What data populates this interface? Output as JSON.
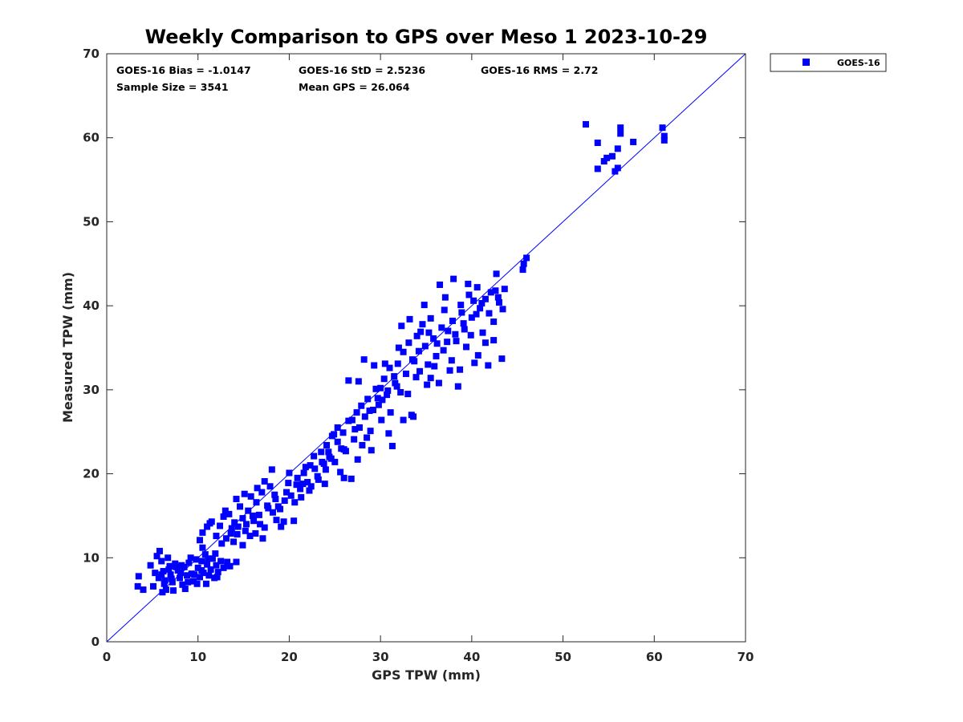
{
  "chart_data": {
    "type": "scatter",
    "title": "Weekly Comparison to GPS over Meso 1 2023-10-29",
    "xlabel": "GPS TPW (mm)",
    "ylabel": "Measured TPW (mm)",
    "xlim": [
      0,
      70
    ],
    "ylim": [
      0,
      70
    ],
    "xticks": [
      "0",
      "10",
      "20",
      "30",
      "40",
      "50",
      "60",
      "70"
    ],
    "yticks": [
      "0",
      "10",
      "20",
      "30",
      "40",
      "50",
      "60",
      "70"
    ],
    "grid": false,
    "legend_position": "outside-top-right",
    "stats": {
      "bias": "GOES-16 Bias = -1.0147",
      "std": "GOES-16 StD = 2.5236",
      "rms": "GOES-16 RMS = 2.72",
      "sample_size": "Sample Size = 3541",
      "mean_gps": "Mean GPS = 26.064"
    },
    "reference_line": {
      "name": "1:1",
      "x": [
        0,
        70
      ],
      "y": [
        0,
        70
      ],
      "color": "#0000ff"
    },
    "series": [
      {
        "name": "GOES-16",
        "color": "#0000ff",
        "marker": "square",
        "points": [
          [
            3.5,
            7.8
          ],
          [
            3.4,
            6.6
          ],
          [
            4.0,
            6.2
          ],
          [
            5.1,
            6.6
          ],
          [
            5.3,
            8.2
          ],
          [
            5.5,
            10.2
          ],
          [
            5.8,
            10.8
          ],
          [
            6.0,
            9.6
          ],
          [
            6.2,
            8.4
          ],
          [
            6.4,
            7.3
          ],
          [
            6.5,
            6.2
          ],
          [
            6.7,
            10.0
          ],
          [
            6.9,
            9.0
          ],
          [
            7.0,
            8.0
          ],
          [
            7.2,
            7.1
          ],
          [
            7.5,
            9.3
          ],
          [
            7.8,
            8.5
          ],
          [
            8.0,
            7.6
          ],
          [
            8.3,
            6.8
          ],
          [
            8.5,
            8.9
          ],
          [
            8.8,
            7.9
          ],
          [
            9.0,
            9.4
          ],
          [
            9.3,
            8.1
          ],
          [
            9.5,
            7.2
          ],
          [
            9.8,
            9.8
          ],
          [
            10.0,
            8.8
          ],
          [
            10.2,
            7.7
          ],
          [
            10.4,
            9.6
          ],
          [
            10.6,
            8.2
          ],
          [
            10.8,
            10.4
          ],
          [
            11.0,
            9.2
          ],
          [
            11.2,
            7.9
          ],
          [
            11.4,
            8.6
          ],
          [
            11.6,
            9.9
          ],
          [
            11.8,
            7.6
          ],
          [
            12.0,
            9.1
          ],
          [
            12.2,
            8.3
          ],
          [
            12.5,
            9.6
          ],
          [
            12.8,
            8.8
          ],
          [
            13.2,
            9.5
          ],
          [
            13.5,
            9.0
          ],
          [
            10.2,
            12.1
          ],
          [
            10.5,
            13.0
          ],
          [
            11.0,
            13.7
          ],
          [
            11.5,
            14.3
          ],
          [
            12.0,
            12.6
          ],
          [
            12.4,
            13.8
          ],
          [
            12.8,
            14.9
          ],
          [
            13.1,
            12.3
          ],
          [
            13.4,
            15.2
          ],
          [
            13.7,
            13.5
          ],
          [
            14.0,
            14.2
          ],
          [
            14.3,
            12.8
          ],
          [
            14.6,
            16.1
          ],
          [
            14.9,
            14.7
          ],
          [
            15.2,
            13.2
          ],
          [
            15.5,
            15.6
          ],
          [
            15.8,
            17.3
          ],
          [
            16.1,
            14.4
          ],
          [
            16.4,
            16.6
          ],
          [
            16.7,
            15.1
          ],
          [
            17.0,
            17.8
          ],
          [
            17.3,
            13.6
          ],
          [
            17.6,
            16.2
          ],
          [
            17.9,
            18.5
          ],
          [
            18.2,
            15.4
          ],
          [
            18.5,
            17.0
          ],
          [
            18.8,
            16.1
          ],
          [
            19.1,
            13.7
          ],
          [
            19.5,
            16.8
          ],
          [
            19.9,
            18.9
          ],
          [
            20.2,
            17.4
          ],
          [
            20.5,
            14.4
          ],
          [
            20.9,
            19.5
          ],
          [
            21.2,
            18.2
          ],
          [
            21.6,
            20.1
          ],
          [
            22.0,
            19.0
          ],
          [
            22.4,
            18.5
          ],
          [
            22.8,
            20.6
          ],
          [
            23.2,
            19.3
          ],
          [
            23.5,
            22.6
          ],
          [
            23.8,
            21.2
          ],
          [
            24.1,
            23.4
          ],
          [
            24.4,
            22.0
          ],
          [
            24.7,
            24.5
          ],
          [
            25.0,
            21.4
          ],
          [
            25.3,
            23.8
          ],
          [
            25.6,
            20.2
          ],
          [
            25.9,
            24.9
          ],
          [
            26.2,
            22.7
          ],
          [
            26.5,
            26.3
          ],
          [
            26.8,
            19.4
          ],
          [
            27.1,
            24.1
          ],
          [
            27.4,
            27.3
          ],
          [
            27.7,
            25.5
          ],
          [
            28.0,
            23.4
          ],
          [
            28.3,
            26.8
          ],
          [
            28.6,
            28.9
          ],
          [
            28.9,
            25.1
          ],
          [
            29.2,
            27.6
          ],
          [
            29.5,
            30.1
          ],
          [
            29.8,
            28.2
          ],
          [
            30.1,
            26.4
          ],
          [
            30.4,
            31.3
          ],
          [
            30.7,
            29.4
          ],
          [
            31.0,
            32.6
          ],
          [
            31.3,
            23.3
          ],
          [
            31.6,
            30.8
          ],
          [
            31.9,
            33.1
          ],
          [
            32.2,
            29.7
          ],
          [
            32.5,
            34.5
          ],
          [
            32.8,
            31.9
          ],
          [
            33.1,
            35.6
          ],
          [
            33.4,
            27.0
          ],
          [
            33.7,
            33.4
          ],
          [
            34.0,
            36.4
          ],
          [
            34.3,
            32.2
          ],
          [
            34.6,
            37.8
          ],
          [
            34.9,
            35.2
          ],
          [
            35.2,
            33.0
          ],
          [
            35.5,
            38.5
          ],
          [
            35.8,
            36.1
          ],
          [
            36.1,
            34.0
          ],
          [
            36.4,
            30.8
          ],
          [
            36.7,
            37.4
          ],
          [
            37.0,
            39.5
          ],
          [
            37.3,
            35.7
          ],
          [
            37.6,
            32.3
          ],
          [
            37.9,
            38.2
          ],
          [
            38.2,
            36.6
          ],
          [
            38.5,
            30.4
          ],
          [
            38.8,
            40.1
          ],
          [
            39.1,
            37.9
          ],
          [
            39.4,
            35.1
          ],
          [
            39.7,
            41.3
          ],
          [
            40.0,
            38.6
          ],
          [
            40.3,
            33.2
          ],
          [
            40.6,
            42.2
          ],
          [
            40.9,
            39.7
          ],
          [
            41.2,
            36.8
          ],
          [
            41.5,
            40.8
          ],
          [
            41.8,
            32.9
          ],
          [
            42.1,
            41.6
          ],
          [
            42.4,
            38.1
          ],
          [
            42.7,
            43.8
          ],
          [
            43.0,
            40.4
          ],
          [
            43.3,
            33.7
          ],
          [
            43.6,
            42.0
          ],
          [
            38.0,
            43.2
          ],
          [
            36.5,
            42.5
          ],
          [
            45.6,
            44.3
          ],
          [
            45.7,
            45.0
          ],
          [
            46.0,
            45.7
          ],
          [
            52.5,
            61.6
          ],
          [
            53.8,
            59.4
          ],
          [
            53.8,
            56.3
          ],
          [
            54.5,
            57.2
          ],
          [
            54.8,
            57.6
          ],
          [
            55.4,
            57.8
          ],
          [
            55.7,
            56.0
          ],
          [
            56.0,
            58.7
          ],
          [
            56.0,
            56.4
          ],
          [
            56.3,
            60.5
          ],
          [
            56.3,
            61.2
          ],
          [
            57.7,
            59.5
          ],
          [
            60.9,
            61.2
          ],
          [
            61.1,
            59.7
          ],
          [
            61.1,
            60.2
          ],
          [
            8.6,
            6.3
          ],
          [
            9.9,
            6.9
          ],
          [
            6.1,
            5.9
          ],
          [
            7.3,
            6.1
          ],
          [
            10.9,
            6.9
          ],
          [
            12.1,
            7.7
          ],
          [
            14.2,
            9.5
          ],
          [
            16.3,
            12.9
          ],
          [
            17.1,
            12.3
          ],
          [
            19.4,
            14.3
          ],
          [
            20.6,
            16.6
          ],
          [
            22.2,
            18.0
          ],
          [
            23.9,
            18.8
          ],
          [
            26.0,
            19.5
          ],
          [
            24.6,
            21.8
          ],
          [
            27.5,
            21.7
          ],
          [
            29.0,
            22.8
          ],
          [
            30.9,
            24.8
          ],
          [
            32.5,
            26.4
          ],
          [
            33.6,
            26.8
          ],
          [
            35.1,
            30.6
          ],
          [
            38.7,
            32.4
          ],
          [
            41.5,
            35.6
          ],
          [
            42.4,
            35.9
          ],
          [
            40.7,
            34.1
          ],
          [
            32.3,
            37.6
          ],
          [
            33.2,
            38.4
          ],
          [
            34.8,
            40.1
          ],
          [
            37.1,
            41.0
          ],
          [
            39.6,
            42.6
          ],
          [
            28.2,
            33.6
          ],
          [
            27.6,
            31.0
          ],
          [
            26.5,
            31.1
          ],
          [
            30.5,
            33.1
          ],
          [
            29.3,
            32.9
          ],
          [
            25.3,
            25.5
          ],
          [
            24.3,
            22.6
          ],
          [
            22.7,
            22.1
          ],
          [
            21.8,
            20.8
          ],
          [
            20.0,
            20.1
          ],
          [
            18.1,
            20.5
          ],
          [
            17.3,
            19.1
          ],
          [
            16.5,
            18.3
          ],
          [
            15.1,
            17.6
          ],
          [
            14.2,
            17.0
          ],
          [
            13.0,
            15.6
          ],
          [
            11.3,
            14.1
          ],
          [
            10.5,
            11.2
          ],
          [
            9.2,
            10.0
          ],
          [
            8.1,
            8.2
          ],
          [
            7.1,
            7.5
          ],
          [
            6.3,
            6.9
          ],
          [
            5.7,
            7.6
          ],
          [
            4.8,
            9.1
          ],
          [
            14.9,
            11.5
          ],
          [
            15.7,
            12.6
          ],
          [
            18.6,
            14.5
          ],
          [
            21.3,
            17.2
          ],
          [
            23.1,
            19.7
          ],
          [
            25.7,
            23.0
          ],
          [
            27.2,
            25.3
          ],
          [
            28.8,
            27.5
          ],
          [
            30.2,
            28.8
          ],
          [
            31.8,
            30.4
          ],
          [
            33.9,
            31.5
          ],
          [
            35.9,
            32.8
          ],
          [
            36.9,
            34.7
          ],
          [
            38.3,
            35.8
          ],
          [
            39.2,
            37.2
          ],
          [
            40.5,
            39.0
          ],
          [
            42.9,
            41.0
          ],
          [
            43.4,
            39.6
          ],
          [
            41.1,
            40.3
          ],
          [
            36.2,
            35.5
          ],
          [
            34.4,
            36.9
          ],
          [
            32.0,
            35.0
          ],
          [
            30.0,
            30.2
          ],
          [
            29.7,
            29.0
          ],
          [
            27.9,
            28.1
          ],
          [
            26.9,
            26.4
          ],
          [
            24.9,
            24.7
          ],
          [
            23.6,
            21.4
          ],
          [
            22.3,
            21.0
          ],
          [
            20.8,
            18.7
          ],
          [
            19.7,
            17.8
          ],
          [
            18.4,
            17.5
          ],
          [
            17.7,
            15.9
          ],
          [
            16.0,
            15.0
          ],
          [
            15.3,
            14.0
          ],
          [
            14.4,
            13.7
          ],
          [
            13.6,
            12.9
          ],
          [
            12.6,
            11.7
          ],
          [
            11.9,
            10.5
          ],
          [
            11.1,
            9.9
          ],
          [
            10.4,
            8.5
          ],
          [
            9.6,
            8.0
          ],
          [
            8.9,
            7.1
          ],
          [
            8.2,
            9.1
          ],
          [
            7.6,
            8.9
          ],
          [
            6.8,
            8.6
          ],
          [
            6.0,
            8.0
          ],
          [
            13.9,
            11.9
          ],
          [
            16.8,
            14.0
          ],
          [
            19.0,
            15.8
          ],
          [
            21.5,
            18.8
          ],
          [
            24.0,
            20.5
          ],
          [
            26.0,
            22.9
          ],
          [
            28.5,
            24.3
          ],
          [
            31.1,
            27.3
          ],
          [
            33.0,
            29.5
          ],
          [
            35.5,
            31.4
          ],
          [
            37.8,
            33.5
          ],
          [
            39.9,
            36.5
          ],
          [
            41.9,
            39.1
          ],
          [
            42.6,
            41.8
          ],
          [
            40.2,
            40.6
          ],
          [
            38.9,
            39.2
          ],
          [
            37.4,
            37.0
          ],
          [
            35.3,
            36.8
          ],
          [
            34.2,
            34.6
          ],
          [
            33.5,
            33.6
          ],
          [
            31.5,
            31.6
          ],
          [
            30.8,
            29.9
          ]
        ]
      }
    ]
  }
}
